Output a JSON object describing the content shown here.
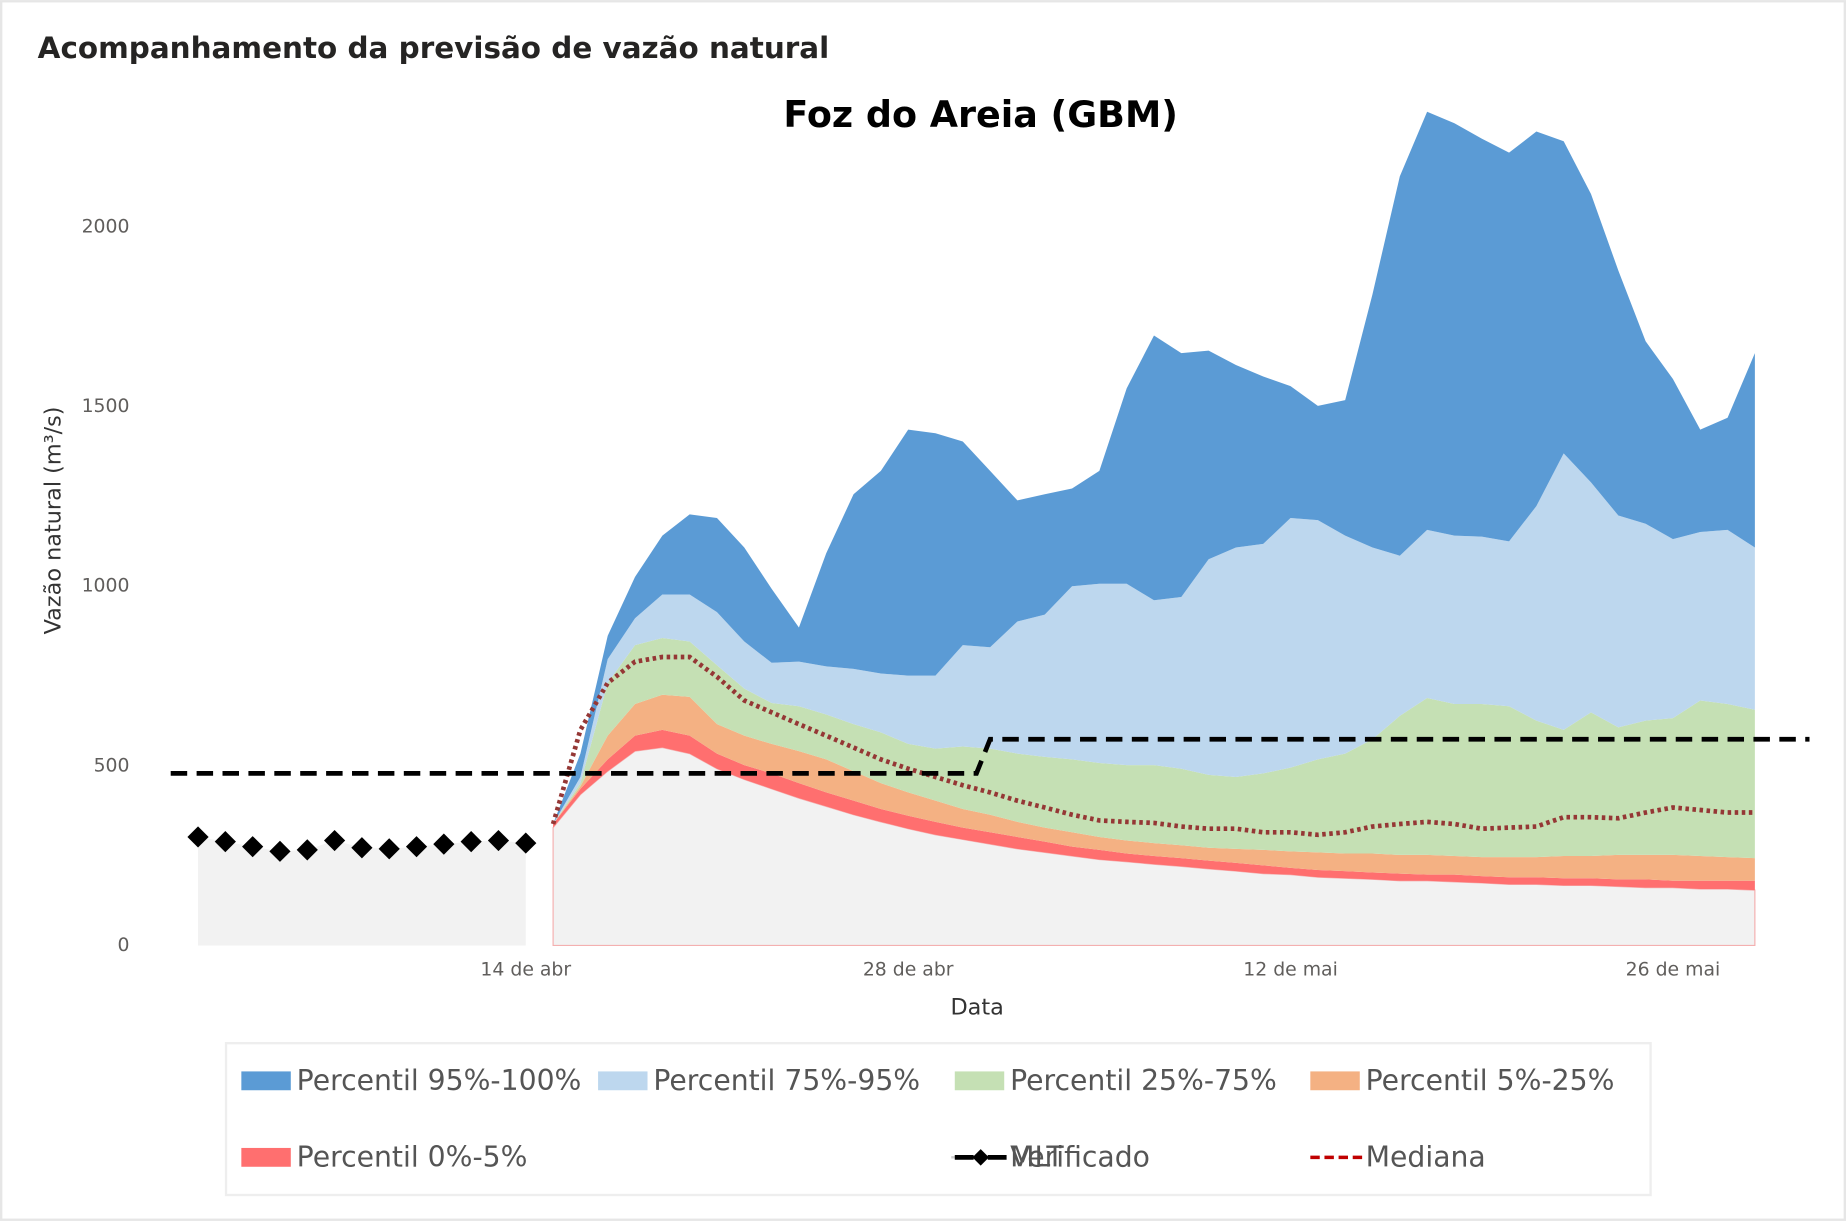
{
  "chart_data": {
    "type": "area",
    "stacked": true,
    "title": "Acompanhamento da previsão de vazão natural",
    "subtitle": "Foz do Areia (GBM)",
    "x_label": "Data",
    "y_label": "Vazão natural (m³/s)",
    "xlim": [
      1,
      61
    ],
    "xticks": [
      {
        "value": 14,
        "label": "14 de abr"
      },
      {
        "value": 28,
        "label": "28 de abr"
      },
      {
        "value": 42,
        "label": "12 de mai"
      },
      {
        "value": 56,
        "label": "26 de mai"
      }
    ],
    "ylim": [
      0,
      2350
    ],
    "yticks": [
      0,
      500,
      1000,
      1500,
      2000
    ],
    "x": [
      15,
      16,
      17,
      18,
      19,
      20,
      21,
      22,
      23,
      24,
      25,
      26,
      27,
      28,
      29,
      30,
      31,
      32,
      33,
      34,
      35,
      36,
      37,
      38,
      39,
      40,
      41,
      42,
      43,
      44,
      45,
      46,
      47,
      48,
      49,
      50,
      51,
      52,
      53,
      54,
      55,
      56,
      57,
      58,
      59
    ],
    "base": {
      "color": "#f2f2f2",
      "values": [
        328,
        420,
        485,
        541,
        551,
        534,
        492,
        462,
        436,
        410,
        387,
        364,
        344,
        325,
        308,
        295,
        282,
        269,
        259,
        249,
        239,
        233,
        226,
        220,
        213,
        207,
        200,
        197,
        190,
        187,
        184,
        180,
        180,
        177,
        174,
        170,
        170,
        167,
        167,
        164,
        161,
        161,
        157,
        157,
        154
      ]
    },
    "series": [
      {
        "name": "Percentil 0%-5%",
        "color": "#ff6f6f",
        "values": [
          10,
          16,
          33,
          43,
          49,
          50,
          42,
          40,
          43,
          42,
          39,
          39,
          36,
          36,
          36,
          33,
          33,
          33,
          30,
          26,
          27,
          23,
          23,
          23,
          23,
          23,
          23,
          19,
          20,
          20,
          19,
          20,
          17,
          20,
          19,
          20,
          20,
          20,
          20,
          20,
          23,
          19,
          23,
          23,
          26
        ]
      },
      {
        "name": "Percentil 5%-25%",
        "color": "#f4b183",
        "values": [
          0,
          7,
          66,
          88,
          98,
          108,
          82,
          82,
          82,
          89,
          92,
          82,
          72,
          65,
          59,
          52,
          49,
          42,
          39,
          40,
          36,
          36,
          36,
          36,
          36,
          39,
          43,
          46,
          49,
          49,
          53,
          52,
          55,
          52,
          53,
          56,
          56,
          62,
          62,
          68,
          68,
          72,
          69,
          66,
          63
        ]
      },
      {
        "name": "Percentil 25%-75%",
        "color": "#c5e0b4",
        "values": [
          0,
          9,
          147,
          164,
          158,
          154,
          164,
          131,
          114,
          125,
          125,
          131,
          141,
          135,
          145,
          174,
          184,
          190,
          197,
          203,
          206,
          210,
          217,
          213,
          203,
          200,
          213,
          233,
          259,
          278,
          318,
          387,
          437,
          423,
          426,
          420,
          380,
          351,
          400,
          355,
          374,
          381,
          433,
          426,
          413
        ]
      },
      {
        "name": "Percentil 75%-95%",
        "color": "#bdd7ee",
        "values": [
          0,
          17,
          66,
          75,
          121,
          131,
          148,
          131,
          112,
          124,
          134,
          154,
          164,
          190,
          203,
          282,
          282,
          368,
          396,
          482,
          499,
          505,
          459,
          478,
          600,
          639,
          639,
          695,
          666,
          607,
          534,
          446,
          468,
          469,
          466,
          459,
          597,
          770,
          640,
          590,
          548,
          498,
          469,
          485,
          452
        ]
      },
      {
        "name": "Percentil 95%-100%",
        "color": "#5b9bd5",
        "values": [
          0,
          65,
          65,
          115,
          164,
          223,
          262,
          262,
          206,
          95,
          315,
          486,
          564,
          685,
          675,
          567,
          491,
          337,
          335,
          272,
          314,
          544,
          737,
          679,
          581,
          508,
          466,
          367,
          318,
          377,
          705,
          1056,
          1164,
          1148,
          1108,
          1082,
          1043,
          869,
          803,
          682,
          508,
          446,
          285,
          312,
          541
        ]
      }
    ],
    "observed": {
      "name": "Verificado",
      "color": "#000000",
      "x": [
        2,
        3,
        4,
        5,
        6,
        7,
        8,
        9,
        10,
        11,
        12,
        13,
        14
      ],
      "values": [
        302,
        289,
        275,
        262,
        266,
        292,
        272,
        269,
        275,
        282,
        289,
        292,
        285
      ]
    },
    "mlt": {
      "name": "MLT",
      "color": "#000000",
      "x": [
        1,
        30.5,
        31,
        61
      ],
      "values": [
        479,
        479,
        574,
        574
      ]
    },
    "median": {
      "name": "Mediana",
      "color": "#953735",
      "values": [
        338,
        600,
        731,
        790,
        803,
        803,
        748,
        682,
        649,
        616,
        584,
        551,
        518,
        492,
        469,
        446,
        426,
        403,
        384,
        364,
        348,
        344,
        341,
        331,
        325,
        325,
        315,
        315,
        308,
        315,
        331,
        338,
        344,
        338,
        325,
        328,
        331,
        357,
        357,
        354,
        370,
        384,
        377,
        370,
        370
      ]
    }
  }
}
